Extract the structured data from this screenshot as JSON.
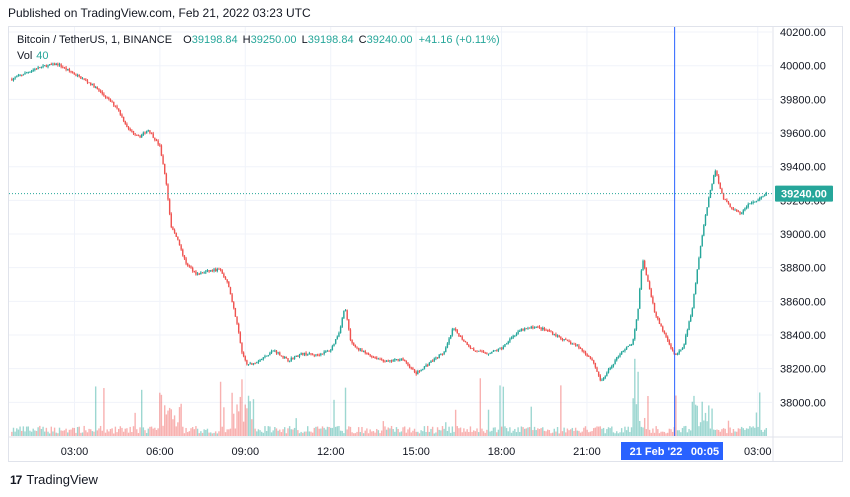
{
  "header": {
    "published": "Published on TradingView.com, Feb 21, 2022 03:23 UTC"
  },
  "legend": {
    "symbol": "Bitcoin / TetherUS, 1, BINANCE",
    "o_label": "O",
    "o_value": "39198.84",
    "h_label": "H",
    "h_value": "39250.00",
    "l_label": "L",
    "l_value": "39198.84",
    "c_label": "C",
    "c_value": "39240.00",
    "change": "+41.16 (+0.11%)",
    "vol_label": "Vol",
    "vol_value": "40"
  },
  "crosshair": {
    "date": "21 Feb '22",
    "time": "00:05"
  },
  "price_tag": "39240.00",
  "footer": {
    "brand": "TradingView",
    "logo_glyph": "17"
  },
  "colors": {
    "up": "#26a69a",
    "down": "#ef5350",
    "crosshair": "#2962ff",
    "tag": "#26a69a"
  },
  "chart_data": {
    "type": "candlestick",
    "interval": "1 minute",
    "x_ticks": [
      "03:00",
      "06:00",
      "09:00",
      "12:00",
      "15:00",
      "18:00",
      "21:00",
      "03:00"
    ],
    "y_ticks": [
      "38000.00",
      "38200.00",
      "38400.00",
      "38600.00",
      "38800.00",
      "39000.00",
      "39200.00",
      "39400.00",
      "39600.00",
      "39800.00",
      "40000.00",
      "40200.00"
    ],
    "y_range": [
      37800,
      40230
    ],
    "x_range_hours": [
      0.7,
      27.5
    ],
    "grid": true,
    "series": [
      {
        "name": "Bitcoin / TetherUS",
        "price_path": [
          [
            0.8,
            39920
          ],
          [
            1.2,
            39950
          ],
          [
            1.6,
            39980
          ],
          [
            2.0,
            40000
          ],
          [
            2.4,
            40010
          ],
          [
            2.8,
            39970
          ],
          [
            3.2,
            39930
          ],
          [
            3.6,
            39890
          ],
          [
            4.0,
            39830
          ],
          [
            4.5,
            39750
          ],
          [
            4.9,
            39620
          ],
          [
            5.3,
            39580
          ],
          [
            5.6,
            39620
          ],
          [
            6.0,
            39520
          ],
          [
            6.2,
            39330
          ],
          [
            6.4,
            39040
          ],
          [
            6.6,
            38980
          ],
          [
            6.9,
            38830
          ],
          [
            7.3,
            38760
          ],
          [
            7.7,
            38780
          ],
          [
            8.1,
            38790
          ],
          [
            8.4,
            38700
          ],
          [
            8.7,
            38480
          ],
          [
            8.9,
            38280
          ],
          [
            9.1,
            38220
          ],
          [
            9.5,
            38250
          ],
          [
            10.0,
            38310
          ],
          [
            10.5,
            38250
          ],
          [
            11.0,
            38290
          ],
          [
            11.5,
            38280
          ],
          [
            12.0,
            38310
          ],
          [
            12.3,
            38420
          ],
          [
            12.5,
            38570
          ],
          [
            12.7,
            38360
          ],
          [
            13.0,
            38310
          ],
          [
            13.5,
            38270
          ],
          [
            14.0,
            38240
          ],
          [
            14.5,
            38260
          ],
          [
            15.0,
            38170
          ],
          [
            15.5,
            38240
          ],
          [
            16.0,
            38300
          ],
          [
            16.3,
            38440
          ],
          [
            16.6,
            38380
          ],
          [
            17.0,
            38310
          ],
          [
            17.5,
            38290
          ],
          [
            18.0,
            38320
          ],
          [
            18.3,
            38380
          ],
          [
            18.7,
            38430
          ],
          [
            19.2,
            38450
          ],
          [
            19.7,
            38420
          ],
          [
            20.2,
            38370
          ],
          [
            20.7,
            38330
          ],
          [
            21.2,
            38250
          ],
          [
            21.5,
            38120
          ],
          [
            21.8,
            38200
          ],
          [
            22.2,
            38300
          ],
          [
            22.6,
            38350
          ],
          [
            22.8,
            38560
          ],
          [
            22.95,
            38860
          ],
          [
            23.1,
            38750
          ],
          [
            23.4,
            38520
          ],
          [
            23.8,
            38380
          ],
          [
            24.1,
            38270
          ],
          [
            24.4,
            38340
          ],
          [
            24.7,
            38560
          ],
          [
            24.9,
            38820
          ],
          [
            25.1,
            39050
          ],
          [
            25.3,
            39230
          ],
          [
            25.5,
            39380
          ],
          [
            25.8,
            39210
          ],
          [
            26.1,
            39150
          ],
          [
            26.4,
            39120
          ],
          [
            26.7,
            39180
          ],
          [
            27.0,
            39200
          ],
          [
            27.3,
            39240
          ]
        ]
      }
    ],
    "volume_max": 830
  }
}
